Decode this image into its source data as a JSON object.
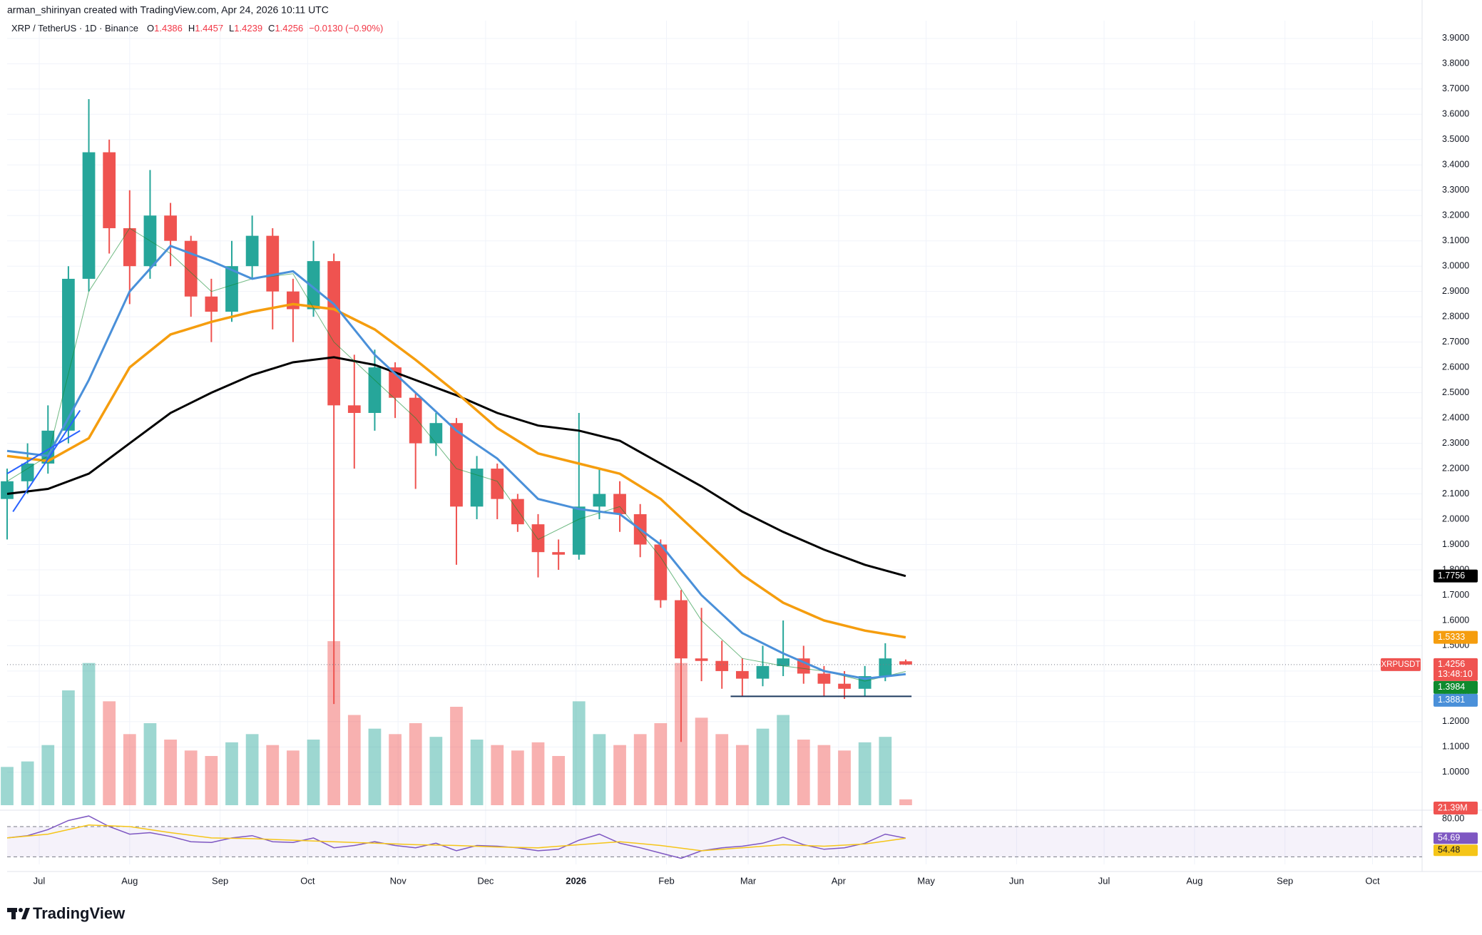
{
  "header": {
    "attribution": "arman_shirinyan created with TradingView.com, Apr 24, 2026 10:11 UTC",
    "symbol": "XRP / TetherUS · 1D · Binance",
    "ohlc_labels": [
      "O",
      "H",
      "L",
      "C"
    ],
    "ohlc_values": [
      1.4386,
      1.4457,
      1.4239,
      1.4256
    ],
    "change": "−0.0130 (−0.90%)",
    "symbol_tag": "XRPUSDT",
    "countdown": "13:48:10",
    "brand": "TradingView"
  },
  "chart_data": {
    "type": "candlestick",
    "x": [
      0,
      7,
      14,
      21,
      28,
      35,
      42,
      49,
      56,
      63,
      70,
      77,
      84,
      91,
      98,
      105,
      112,
      119,
      126,
      133,
      140,
      147,
      154,
      161,
      168,
      175,
      182,
      189,
      196,
      203,
      210,
      217,
      224,
      231,
      238,
      245,
      252,
      259,
      266,
      273,
      280,
      287,
      294,
      301,
      308
    ],
    "open": [
      2.08,
      2.15,
      2.22,
      2.35,
      2.95,
      3.45,
      3.15,
      3.0,
      3.2,
      3.1,
      2.88,
      2.82,
      3.0,
      3.12,
      2.9,
      2.83,
      3.02,
      2.45,
      2.42,
      2.6,
      2.48,
      2.3,
      2.38,
      2.05,
      2.2,
      2.08,
      1.98,
      1.87,
      1.86,
      2.05,
      2.1,
      2.02,
      1.9,
      1.68,
      1.45,
      1.44,
      1.4,
      1.37,
      1.42,
      1.45,
      1.39,
      1.35,
      1.33,
      1.38,
      1.4386
    ],
    "high": [
      2.2,
      2.3,
      2.45,
      3.0,
      3.66,
      3.5,
      3.3,
      3.38,
      3.25,
      3.12,
      2.95,
      3.1,
      3.2,
      3.15,
      2.95,
      3.1,
      3.05,
      2.65,
      2.67,
      2.62,
      2.5,
      2.42,
      2.4,
      2.25,
      2.22,
      2.1,
      2.02,
      1.92,
      2.42,
      2.2,
      2.15,
      2.06,
      1.92,
      1.72,
      1.65,
      1.52,
      1.45,
      1.5,
      1.6,
      1.5,
      1.42,
      1.4,
      1.42,
      1.51,
      1.4457
    ],
    "low": [
      1.92,
      2.1,
      2.18,
      2.3,
      2.9,
      3.05,
      2.85,
      2.95,
      3.0,
      2.8,
      2.7,
      2.78,
      2.95,
      2.75,
      2.7,
      2.8,
      1.27,
      2.2,
      2.35,
      2.4,
      2.12,
      2.25,
      1.82,
      2.0,
      2.0,
      1.95,
      1.77,
      1.8,
      1.84,
      2.0,
      1.95,
      1.85,
      1.65,
      1.12,
      1.36,
      1.33,
      1.3,
      1.34,
      1.38,
      1.35,
      1.3,
      1.29,
      1.3,
      1.36,
      1.4239
    ],
    "close": [
      2.15,
      2.22,
      2.35,
      2.95,
      3.45,
      3.15,
      3.0,
      3.2,
      3.1,
      2.88,
      2.82,
      3.0,
      3.12,
      2.9,
      2.83,
      3.02,
      2.45,
      2.42,
      2.6,
      2.48,
      2.3,
      2.38,
      2.05,
      2.2,
      2.08,
      1.98,
      1.87,
      1.86,
      2.05,
      2.1,
      2.02,
      1.9,
      1.68,
      1.45,
      1.44,
      1.4,
      1.37,
      1.42,
      1.45,
      1.39,
      1.35,
      1.33,
      1.38,
      1.45,
      1.4256
    ],
    "up_color": "#26a69a",
    "down_color": "#ef5350",
    "xlim": [
      0,
      485
    ],
    "xticks": [
      {
        "value": 11,
        "label": "Jul"
      },
      {
        "value": 42,
        "label": "Aug"
      },
      {
        "value": 73,
        "label": "Sep"
      },
      {
        "value": 103,
        "label": "Oct"
      },
      {
        "value": 134,
        "label": "Nov"
      },
      {
        "value": 164,
        "label": "Dec"
      },
      {
        "value": 195,
        "label": "2026"
      },
      {
        "value": 226,
        "label": "Feb"
      },
      {
        "value": 254,
        "label": "Mar"
      },
      {
        "value": 285,
        "label": "Apr"
      },
      {
        "value": 315,
        "label": "May"
      },
      {
        "value": 346,
        "label": "Jun"
      },
      {
        "value": 376,
        "label": "Jul"
      },
      {
        "value": 407,
        "label": "Aug"
      },
      {
        "value": 438,
        "label": "Sep"
      },
      {
        "value": 468,
        "label": "Oct"
      }
    ],
    "ylim": [
      0.87,
      3.97
    ],
    "yticks": [
      {
        "value": 1.0,
        "label": "1.0000"
      },
      {
        "value": 1.1,
        "label": "1.1000"
      },
      {
        "value": 1.2,
        "label": "1.2000"
      },
      {
        "value": 1.3,
        "label": "1.3000"
      },
      {
        "value": 1.4,
        "label": "1.4000"
      },
      {
        "value": 1.5,
        "label": "1.5000"
      },
      {
        "value": 1.6,
        "label": "1.6000"
      },
      {
        "value": 1.7,
        "label": "1.7000"
      },
      {
        "value": 1.8,
        "label": "1.8000"
      },
      {
        "value": 1.9,
        "label": "1.9000"
      },
      {
        "value": 2.0,
        "label": "2.0000"
      },
      {
        "value": 2.1,
        "label": "2.1000"
      },
      {
        "value": 2.2,
        "label": "2.2000"
      },
      {
        "value": 2.3,
        "label": "2.3000"
      },
      {
        "value": 2.4,
        "label": "2.4000"
      },
      {
        "value": 2.5,
        "label": "2.5000"
      },
      {
        "value": 2.6,
        "label": "2.6000"
      },
      {
        "value": 2.7,
        "label": "2.7000"
      },
      {
        "value": 2.8,
        "label": "2.8000"
      },
      {
        "value": 2.9,
        "label": "2.9000"
      },
      {
        "value": 3.0,
        "label": "3.0000"
      },
      {
        "value": 3.1,
        "label": "3.1000"
      },
      {
        "value": 3.2,
        "label": "3.2000"
      },
      {
        "value": 3.3,
        "label": "3.3000"
      },
      {
        "value": 3.4,
        "label": "3.4000"
      },
      {
        "value": 3.5,
        "label": "3.5000"
      },
      {
        "value": 3.6,
        "label": "3.6000"
      },
      {
        "value": 3.7,
        "label": "3.7000"
      },
      {
        "value": 3.8,
        "label": "3.8000"
      },
      {
        "value": 3.9,
        "label": "3.9000"
      }
    ],
    "grid": true,
    "series": [
      {
        "color": "#000000",
        "line_width": 3,
        "x": [
          0,
          14,
          28,
          42,
          56,
          70,
          84,
          98,
          112,
          126,
          140,
          154,
          168,
          182,
          196,
          210,
          224,
          238,
          252,
          266,
          280,
          294,
          308
        ],
        "values": [
          2.1,
          2.12,
          2.18,
          2.3,
          2.42,
          2.5,
          2.57,
          2.62,
          2.64,
          2.61,
          2.55,
          2.49,
          2.42,
          2.37,
          2.35,
          2.31,
          2.22,
          2.13,
          2.03,
          1.95,
          1.88,
          1.82,
          1.7756
        ]
      },
      {
        "color": "#f59d0e",
        "line_width": 3.5,
        "x": [
          0,
          14,
          28,
          42,
          56,
          70,
          84,
          98,
          112,
          126,
          140,
          154,
          168,
          182,
          196,
          210,
          224,
          238,
          252,
          266,
          280,
          294,
          308
        ],
        "values": [
          2.25,
          2.23,
          2.32,
          2.6,
          2.73,
          2.78,
          2.82,
          2.85,
          2.83,
          2.75,
          2.63,
          2.5,
          2.36,
          2.26,
          2.22,
          2.18,
          2.08,
          1.93,
          1.78,
          1.67,
          1.6,
          1.56,
          1.5333
        ]
      },
      {
        "color": "#0f8a2e",
        "line_width": 1,
        "x": [
          0,
          14,
          28,
          42,
          56,
          70,
          84,
          98,
          112,
          126,
          140,
          154,
          168,
          182,
          196,
          210,
          224,
          238,
          252,
          266,
          280,
          294,
          308
        ],
        "values": [
          2.15,
          2.25,
          2.9,
          3.15,
          3.05,
          2.9,
          2.95,
          2.97,
          2.7,
          2.55,
          2.4,
          2.2,
          2.15,
          1.92,
          2.0,
          2.05,
          1.85,
          1.6,
          1.45,
          1.42,
          1.4,
          1.36,
          1.3984
        ]
      },
      {
        "color": "#4a90d9",
        "line_width": 3,
        "x": [
          0,
          14,
          28,
          42,
          56,
          70,
          84,
          98,
          112,
          126,
          140,
          154,
          168,
          182,
          196,
          210,
          224,
          238,
          252,
          266,
          280,
          294,
          308
        ],
        "values": [
          2.27,
          2.25,
          2.55,
          2.9,
          3.08,
          3.02,
          2.95,
          2.98,
          2.85,
          2.65,
          2.5,
          2.35,
          2.24,
          2.08,
          2.04,
          2.02,
          1.9,
          1.7,
          1.55,
          1.47,
          1.4,
          1.37,
          1.3881
        ]
      }
    ],
    "drawings": [
      {
        "color": "#1e3a5f",
        "x": [
          248,
          310
        ],
        "y": [
          1.3,
          1.3
        ]
      },
      {
        "color": "#2962ff",
        "x": [
          2,
          25
        ],
        "y": [
          2.03,
          2.43
        ]
      },
      {
        "color": "#2962ff",
        "x": [
          0,
          25
        ],
        "y": [
          2.18,
          2.35
        ]
      }
    ],
    "volume": {
      "values": [
        140,
        160,
        220,
        420,
        520,
        380,
        260,
        300,
        240,
        200,
        180,
        230,
        260,
        220,
        200,
        240,
        600,
        330,
        280,
        260,
        300,
        250,
        360,
        240,
        220,
        200,
        230,
        180,
        380,
        260,
        220,
        260,
        300,
        520,
        320,
        260,
        220,
        280,
        330,
        240,
        220,
        200,
        230,
        250,
        21.39
      ],
      "last_label": "21.39M"
    },
    "rsi": {
      "color": "#7e57c2",
      "values": [
        55,
        58,
        66,
        78,
        84,
        70,
        60,
        62,
        57,
        50,
        49,
        55,
        58,
        50,
        49,
        55,
        42,
        45,
        50,
        45,
        42,
        48,
        38,
        45,
        44,
        42,
        38,
        40,
        52,
        60,
        48,
        42,
        35,
        28,
        38,
        42,
        44,
        48,
        56,
        46,
        40,
        42,
        48,
        60,
        54.69
      ],
      "ma": {
        "color": "#f5c518",
        "x": [
          0,
          14,
          28,
          42,
          56,
          70,
          84,
          98,
          112,
          126,
          140,
          154,
          168,
          182,
          196,
          210,
          224,
          238,
          252,
          266,
          280,
          294,
          308
        ],
        "values": [
          55,
          60,
          72,
          70,
          62,
          55,
          54,
          52,
          50,
          48,
          46,
          45,
          43,
          42,
          46,
          50,
          45,
          38,
          42,
          46,
          44,
          47,
          54.48
        ]
      },
      "ylim": [
        20,
        86
      ],
      "yticks": [
        {
          "value": 80,
          "label": "80.00"
        }
      ],
      "bands": [
        30,
        70
      ]
    }
  }
}
